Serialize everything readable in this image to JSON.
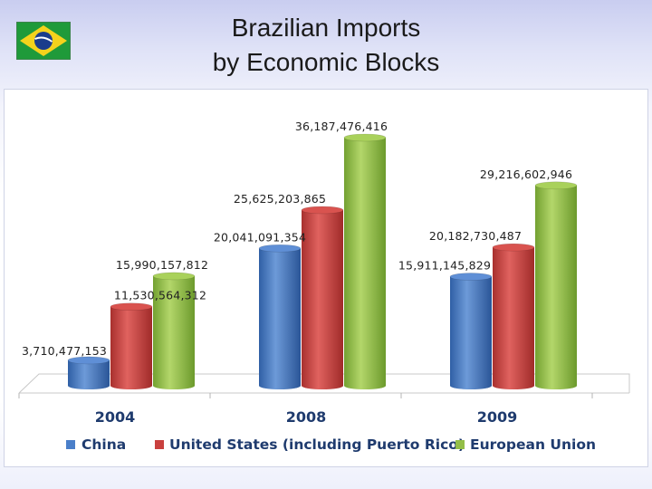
{
  "slide": {
    "title_line1": "Brazilian Imports",
    "title_line2": "by Economic Blocks",
    "flag_icon": "brazil-flag-icon"
  },
  "chart_data": {
    "type": "bar",
    "style": "3d-cylinder",
    "title": "Brazilian Imports by Economic Blocks",
    "categories": [
      "2004",
      "2008",
      "2009"
    ],
    "series": [
      {
        "name": "China",
        "color": "#4a7fc9",
        "values": [
          3710477153,
          20041091354,
          15911145829
        ],
        "labels": [
          "3,710,477,153",
          "20,041,091,354",
          "15,911,145,829"
        ]
      },
      {
        "name": "United States (including Puerto Rico)",
        "color": "#c9403e",
        "values": [
          11530564312,
          25625203865,
          20182730487
        ],
        "labels": [
          "11,530,564,312",
          "25,625,203,865",
          "20,182,730,487"
        ]
      },
      {
        "name": "European Union",
        "color": "#93be47",
        "values": [
          15990157812,
          36187476416,
          29216602946
        ],
        "labels": [
          "15,990,157,812",
          "36,187,476,416",
          "29,216,602,946"
        ]
      }
    ],
    "ylim": [
      0,
      36187476416
    ],
    "grid": false,
    "legend_position": "bottom"
  }
}
